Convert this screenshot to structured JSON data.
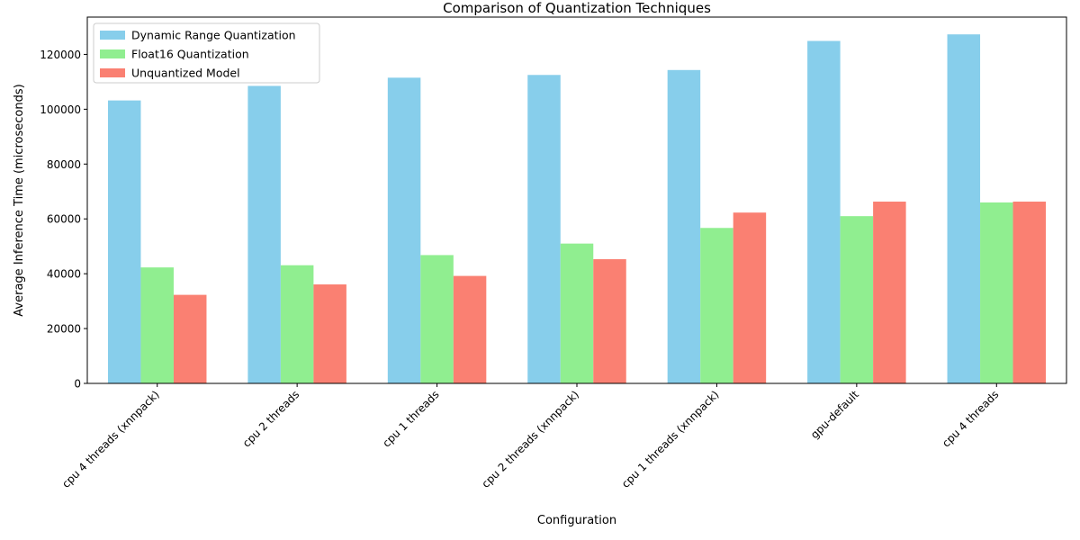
{
  "chart_data": {
    "type": "bar",
    "title": "Comparison of Quantization Techniques",
    "xlabel": "Configuration",
    "ylabel": "Average Inference Time (microseconds)",
    "categories": [
      "cpu 4 threads (xnnpack)",
      "cpu 2 threads",
      "cpu 1 threads",
      "cpu 2 threads (xnnpack)",
      "cpu 1 threads (xnnpack)",
      "gpu-default",
      "cpu 4 threads"
    ],
    "series": [
      {
        "name": "Dynamic Range Quantization",
        "color": "#87ceeb",
        "values": [
          103200,
          108500,
          111500,
          112500,
          114300,
          124900,
          127300
        ]
      },
      {
        "name": "Float16 Quantization",
        "color": "#90ee90",
        "values": [
          42300,
          43100,
          46800,
          51000,
          56700,
          61000,
          66000
        ]
      },
      {
        "name": "Unquantized Model",
        "color": "#fa8072",
        "values": [
          32300,
          36100,
          39200,
          45300,
          62300,
          66300,
          66300
        ]
      }
    ],
    "ylim": [
      0,
      133600
    ],
    "yticks": [
      0,
      20000,
      40000,
      60000,
      80000,
      100000,
      120000
    ],
    "grid": false,
    "legend": "top-left"
  }
}
